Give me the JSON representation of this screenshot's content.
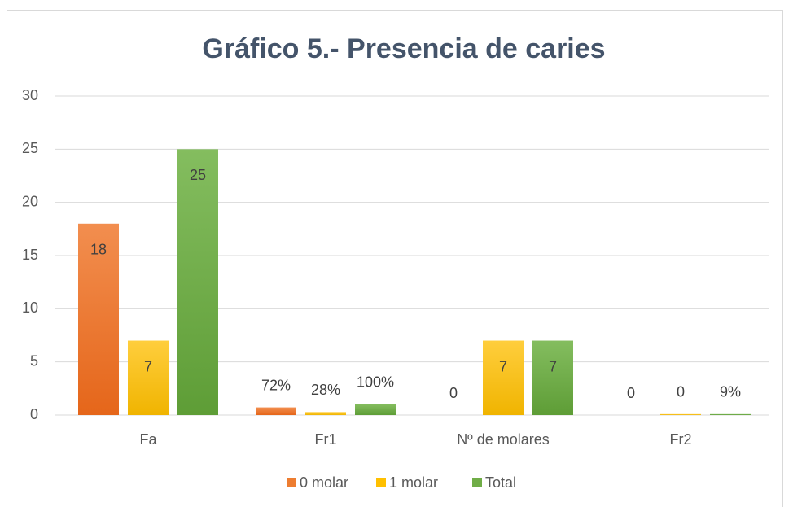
{
  "chart_data": {
    "type": "bar",
    "title": "Gráfico 5.- Presencia de caries",
    "categories": [
      "Fa",
      "Fr1",
      "Nº de molares",
      "Fr2"
    ],
    "series": [
      {
        "name": "0 molar",
        "color": "#ed7d31",
        "values": [
          18,
          0.72,
          0,
          0
        ],
        "value_labels": [
          "18",
          "72%",
          "0",
          "0"
        ]
      },
      {
        "name": "1 molar",
        "color": "#ffc000",
        "values": [
          7,
          0.28,
          7,
          0.09
        ],
        "value_labels": [
          "7",
          "28%",
          "7",
          "0"
        ]
      },
      {
        "name": "Total",
        "color": "#70ad47",
        "values": [
          25,
          1,
          7,
          0.09
        ],
        "value_labels": [
          "25",
          "100%",
          "7",
          "9%"
        ]
      }
    ],
    "ylim": [
      0,
      30
    ],
    "yticks": [
      0,
      5,
      10,
      15,
      20,
      25,
      30
    ],
    "grid": true,
    "legend": "bottom"
  }
}
